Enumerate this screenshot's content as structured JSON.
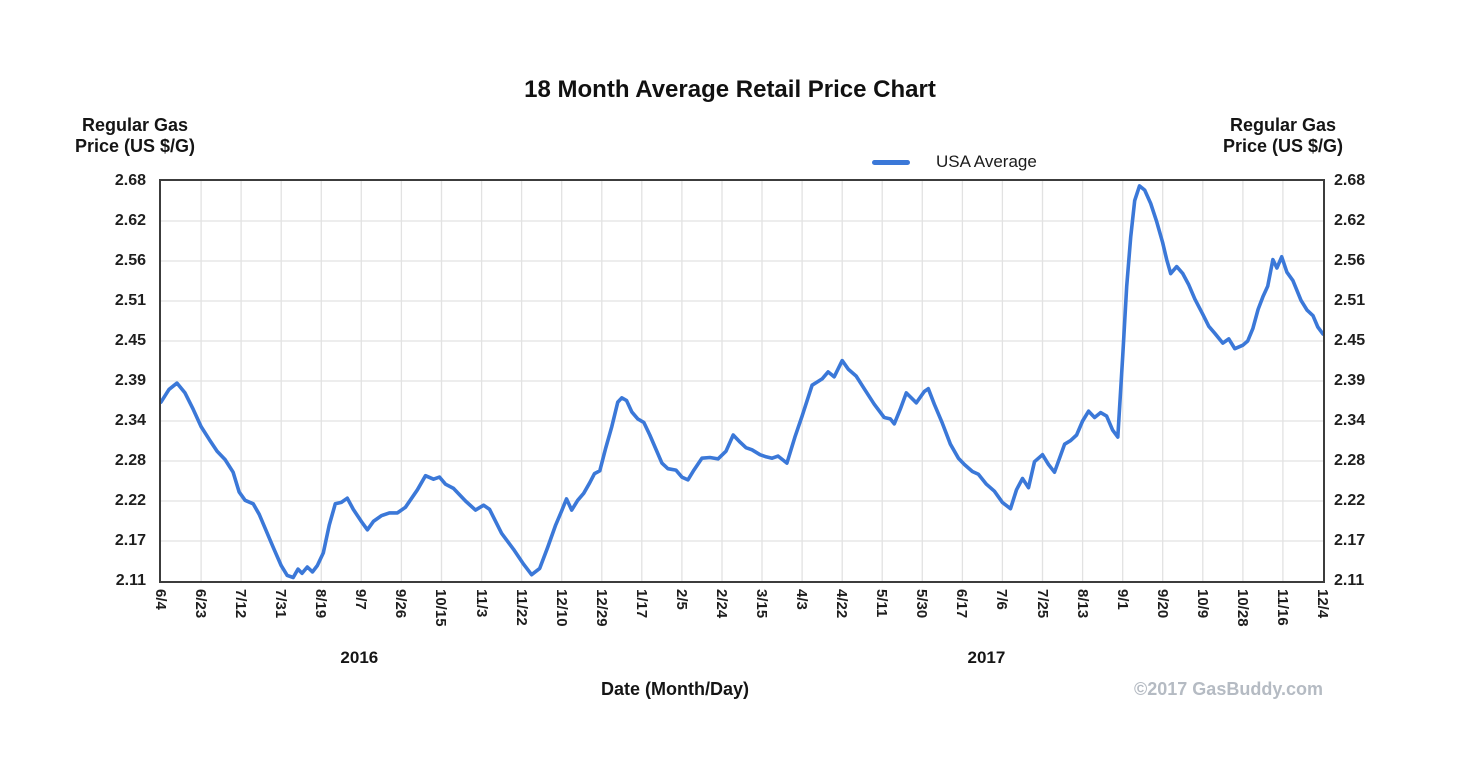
{
  "title": "18 Month Average Retail Price Chart",
  "y_axis_title": {
    "line1": "Regular Gas",
    "line2": "Price (US $/G)"
  },
  "legend": {
    "series_label": "USA Average"
  },
  "footer": {
    "xlabel": "Date (Month/Day)",
    "copyright": "©2017 GasBuddy.com"
  },
  "colors": {
    "line": "#3b78d8",
    "grid": "#e2e2e2",
    "border": "#3c3c3c",
    "text": "#1b1b1b",
    "copyright": "#b5bbc3"
  },
  "chart_data": {
    "type": "line",
    "title": "18 Month Average Retail Price Chart",
    "xlabel": "Date (Month/Day)",
    "ylabel": "Regular Gas Price (US $/G)",
    "grid": true,
    "legend_position": "top",
    "y_range": [
      2.11,
      2.68
    ],
    "y_ticks": [
      2.68,
      2.62,
      2.56,
      2.51,
      2.45,
      2.39,
      2.34,
      2.28,
      2.22,
      2.17,
      2.11
    ],
    "x_ticks": [
      "6/4",
      "6/23",
      "7/12",
      "7/31",
      "8/19",
      "9/7",
      "9/26",
      "10/15",
      "11/3",
      "11/22",
      "12/10",
      "12/29",
      "1/17",
      "2/5",
      "2/24",
      "3/15",
      "4/3",
      "4/22",
      "5/11",
      "5/30",
      "6/17",
      "7/6",
      "7/25",
      "8/13",
      "9/1",
      "9/20",
      "10/9",
      "10/28",
      "11/16",
      "12/4"
    ],
    "year_labels": [
      {
        "label": "2016",
        "tick_pos": 4.95
      },
      {
        "label": "2017",
        "tick_pos": 20.6
      }
    ],
    "series": [
      {
        "name": "USA Average",
        "color": "#3b78d8",
        "points": [
          [
            0,
            2.365
          ],
          [
            0.2,
            2.383
          ],
          [
            0.4,
            2.392
          ],
          [
            0.6,
            2.378
          ],
          [
            0.8,
            2.355
          ],
          [
            1,
            2.33
          ],
          [
            1.2,
            2.312
          ],
          [
            1.4,
            2.295
          ],
          [
            1.6,
            2.283
          ],
          [
            1.8,
            2.265
          ],
          [
            1.95,
            2.237
          ],
          [
            2.1,
            2.225
          ],
          [
            2.3,
            2.22
          ],
          [
            2.45,
            2.205
          ],
          [
            2.6,
            2.185
          ],
          [
            2.8,
            2.158
          ],
          [
            3,
            2.132
          ],
          [
            3.15,
            2.118
          ],
          [
            3.3,
            2.115
          ],
          [
            3.42,
            2.127
          ],
          [
            3.52,
            2.121
          ],
          [
            3.65,
            2.13
          ],
          [
            3.78,
            2.123
          ],
          [
            3.9,
            2.132
          ],
          [
            4.05,
            2.15
          ],
          [
            4.2,
            2.19
          ],
          [
            4.35,
            2.22
          ],
          [
            4.5,
            2.222
          ],
          [
            4.65,
            2.228
          ],
          [
            4.8,
            2.212
          ],
          [
            5,
            2.195
          ],
          [
            5.15,
            2.183
          ],
          [
            5.3,
            2.195
          ],
          [
            5.5,
            2.203
          ],
          [
            5.7,
            2.207
          ],
          [
            5.9,
            2.207
          ],
          [
            6.1,
            2.215
          ],
          [
            6.4,
            2.24
          ],
          [
            6.6,
            2.26
          ],
          [
            6.8,
            2.255
          ],
          [
            6.95,
            2.258
          ],
          [
            7.1,
            2.248
          ],
          [
            7.3,
            2.242
          ],
          [
            7.6,
            2.224
          ],
          [
            7.85,
            2.211
          ],
          [
            8.05,
            2.218
          ],
          [
            8.2,
            2.212
          ],
          [
            8.5,
            2.178
          ],
          [
            8.8,
            2.155
          ],
          [
            9.05,
            2.134
          ],
          [
            9.25,
            2.119
          ],
          [
            9.45,
            2.128
          ],
          [
            9.65,
            2.158
          ],
          [
            9.85,
            2.19
          ],
          [
            10,
            2.21
          ],
          [
            10.12,
            2.227
          ],
          [
            10.25,
            2.211
          ],
          [
            10.4,
            2.225
          ],
          [
            10.55,
            2.235
          ],
          [
            10.7,
            2.25
          ],
          [
            10.82,
            2.263
          ],
          [
            10.95,
            2.267
          ],
          [
            11.1,
            2.3
          ],
          [
            11.25,
            2.33
          ],
          [
            11.4,
            2.365
          ],
          [
            11.5,
            2.371
          ],
          [
            11.62,
            2.367
          ],
          [
            11.75,
            2.351
          ],
          [
            11.9,
            2.341
          ],
          [
            12.05,
            2.336
          ],
          [
            12.2,
            2.318
          ],
          [
            12.35,
            2.298
          ],
          [
            12.5,
            2.278
          ],
          [
            12.65,
            2.27
          ],
          [
            12.85,
            2.268
          ],
          [
            13,
            2.258
          ],
          [
            13.15,
            2.254
          ],
          [
            13.3,
            2.268
          ],
          [
            13.5,
            2.285
          ],
          [
            13.7,
            2.286
          ],
          [
            13.9,
            2.284
          ],
          [
            14.1,
            2.295
          ],
          [
            14.28,
            2.318
          ],
          [
            14.45,
            2.308
          ],
          [
            14.6,
            2.3
          ],
          [
            14.75,
            2.297
          ],
          [
            14.95,
            2.29
          ],
          [
            15.1,
            2.287
          ],
          [
            15.25,
            2.285
          ],
          [
            15.4,
            2.288
          ],
          [
            15.62,
            2.278
          ],
          [
            15.82,
            2.315
          ],
          [
            16,
            2.345
          ],
          [
            16.25,
            2.389
          ],
          [
            16.5,
            2.398
          ],
          [
            16.65,
            2.408
          ],
          [
            16.8,
            2.401
          ],
          [
            17,
            2.424
          ],
          [
            17.15,
            2.412
          ],
          [
            17.35,
            2.402
          ],
          [
            17.55,
            2.384
          ],
          [
            17.8,
            2.362
          ],
          [
            18.05,
            2.343
          ],
          [
            18.2,
            2.341
          ],
          [
            18.3,
            2.334
          ],
          [
            18.45,
            2.355
          ],
          [
            18.6,
            2.378
          ],
          [
            18.85,
            2.364
          ],
          [
            19.05,
            2.38
          ],
          [
            19.15,
            2.384
          ],
          [
            19.3,
            2.362
          ],
          [
            19.5,
            2.335
          ],
          [
            19.7,
            2.305
          ],
          [
            19.9,
            2.285
          ],
          [
            20.05,
            2.276
          ],
          [
            20.25,
            2.266
          ],
          [
            20.4,
            2.262
          ],
          [
            20.6,
            2.248
          ],
          [
            20.8,
            2.238
          ],
          [
            21,
            2.222
          ],
          [
            21.2,
            2.213
          ],
          [
            21.35,
            2.24
          ],
          [
            21.5,
            2.256
          ],
          [
            21.65,
            2.243
          ],
          [
            21.8,
            2.28
          ],
          [
            22,
            2.29
          ],
          [
            22.15,
            2.276
          ],
          [
            22.3,
            2.265
          ],
          [
            22.55,
            2.305
          ],
          [
            22.7,
            2.31
          ],
          [
            22.85,
            2.318
          ],
          [
            23,
            2.338
          ],
          [
            23.15,
            2.352
          ],
          [
            23.3,
            2.343
          ],
          [
            23.45,
            2.35
          ],
          [
            23.6,
            2.345
          ],
          [
            23.75,
            2.325
          ],
          [
            23.88,
            2.315
          ],
          [
            24,
            2.43
          ],
          [
            24.1,
            2.53
          ],
          [
            24.2,
            2.6
          ],
          [
            24.3,
            2.652
          ],
          [
            24.42,
            2.673
          ],
          [
            24.55,
            2.667
          ],
          [
            24.7,
            2.648
          ],
          [
            24.85,
            2.622
          ],
          [
            25,
            2.592
          ],
          [
            25.1,
            2.568
          ],
          [
            25.2,
            2.548
          ],
          [
            25.35,
            2.558
          ],
          [
            25.5,
            2.548
          ],
          [
            25.65,
            2.532
          ],
          [
            25.8,
            2.512
          ],
          [
            26,
            2.49
          ],
          [
            26.15,
            2.473
          ],
          [
            26.3,
            2.463
          ],
          [
            26.5,
            2.449
          ],
          [
            26.65,
            2.455
          ],
          [
            26.8,
            2.441
          ],
          [
            27,
            2.446
          ],
          [
            27.12,
            2.452
          ],
          [
            27.25,
            2.47
          ],
          [
            27.38,
            2.497
          ],
          [
            27.5,
            2.515
          ],
          [
            27.62,
            2.53
          ],
          [
            27.75,
            2.568
          ],
          [
            27.85,
            2.556
          ],
          [
            27.97,
            2.572
          ],
          [
            28.1,
            2.55
          ],
          [
            28.25,
            2.538
          ],
          [
            28.45,
            2.51
          ],
          [
            28.6,
            2.496
          ],
          [
            28.75,
            2.488
          ],
          [
            28.87,
            2.472
          ],
          [
            29,
            2.462
          ]
        ]
      }
    ]
  }
}
